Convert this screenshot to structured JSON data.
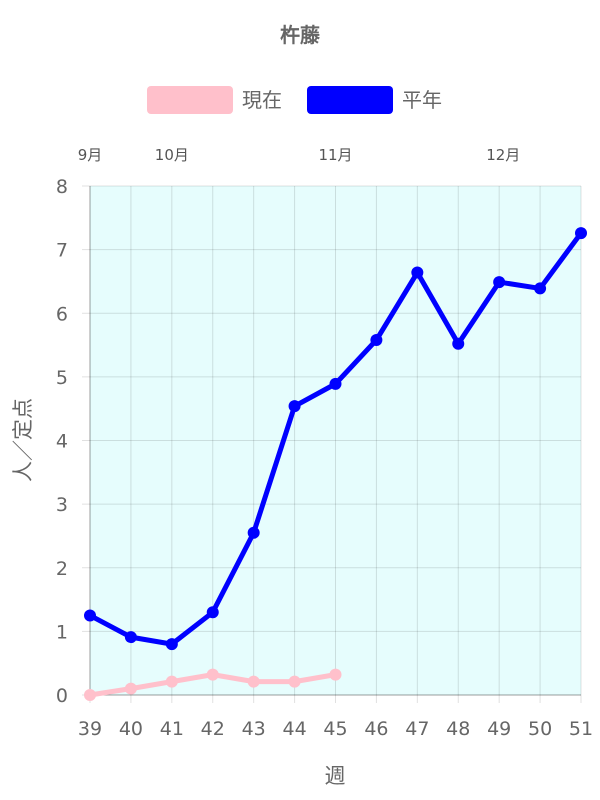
{
  "chart_data": {
    "type": "line",
    "title": "杵藤",
    "xlabel": "週",
    "ylabel": "人／定点",
    "x": [
      39,
      40,
      41,
      42,
      43,
      44,
      45,
      46,
      47,
      48,
      49,
      50,
      51
    ],
    "x_tick_labels": [
      "39",
      "40",
      "41",
      "42",
      "43",
      "44",
      "45",
      "46",
      "47",
      "48",
      "49",
      "50",
      "51"
    ],
    "ylim": [
      0,
      8
    ],
    "y_ticks": [
      0,
      1,
      2,
      3,
      4,
      5,
      6,
      7,
      8
    ],
    "y_tick_labels": [
      "0",
      "1",
      "2",
      "3",
      "4",
      "5",
      "6",
      "7",
      "8"
    ],
    "grid": true,
    "legend_position": "top",
    "plot_background": "#e6fdfd",
    "month_labels": [
      {
        "label": "9月",
        "week": 39
      },
      {
        "label": "10月",
        "week": 41
      },
      {
        "label": "11月",
        "week": 45
      },
      {
        "label": "12月",
        "week": 49.1
      }
    ],
    "series": [
      {
        "name": "現在",
        "color": "#ffc0cb",
        "values": [
          0,
          0.1,
          0.21,
          0.32,
          0.21,
          0.21,
          0.32,
          null,
          null,
          null,
          null,
          null,
          null
        ]
      },
      {
        "name": "平年",
        "color": "#0000ff",
        "values": [
          1.25,
          0.91,
          0.8,
          1.3,
          2.55,
          4.54,
          4.89,
          5.58,
          6.64,
          5.52,
          6.49,
          6.39,
          7.26
        ]
      }
    ]
  }
}
